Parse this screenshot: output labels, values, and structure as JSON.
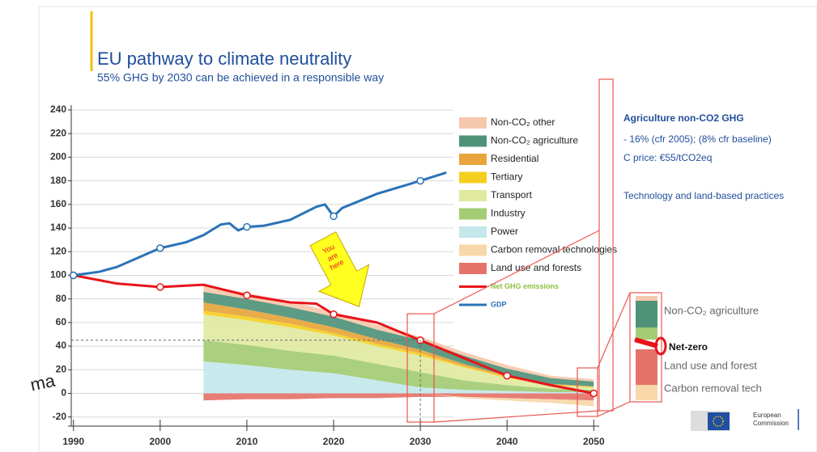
{
  "chart_data": {
    "type": "stacked_area",
    "title": "EU pathway to climate neutrality",
    "subtitle": "55% GHG by 2030 can be achieved in a responsible way",
    "xlim": [
      1989,
      2051
    ],
    "xticks": [
      1990,
      2000,
      2010,
      2020,
      2030,
      2040,
      2050
    ],
    "ylim": [
      -25,
      240
    ],
    "yticks": [
      -20,
      0,
      20,
      40,
      60,
      80,
      100,
      120,
      140,
      160,
      180,
      200,
      220,
      240
    ],
    "grid": true,
    "series": [
      {
        "name": "Non-CO₂ other",
        "type": "area",
        "color": "#f6c8ad",
        "x": [
          2005,
          2010,
          2015,
          2020,
          2025,
          2030,
          2035,
          2040,
          2045,
          2050
        ],
        "values": [
          6,
          5,
          5,
          4,
          4,
          3,
          3,
          3,
          2,
          2
        ]
      },
      {
        "name": "Non-CO₂ agriculture",
        "type": "area",
        "color": "#4f9279",
        "x": [
          2005,
          2010,
          2015,
          2020,
          2025,
          2030,
          2035,
          2040,
          2045,
          2050
        ],
        "values": [
          9,
          9,
          9,
          9,
          8,
          8,
          7,
          6,
          5,
          4
        ]
      },
      {
        "name": "Residential",
        "type": "area",
        "color": "#e7a53b",
        "x": [
          2005,
          2010,
          2015,
          2020,
          2025,
          2030,
          2035,
          2040,
          2045,
          2050
        ],
        "values": [
          7,
          6,
          5,
          5,
          4,
          3,
          2,
          1,
          0.5,
          0.5
        ]
      },
      {
        "name": "Tertiary",
        "type": "area",
        "color": "#f5cf20",
        "x": [
          2005,
          2010,
          2015,
          2020,
          2025,
          2030,
          2035,
          2040,
          2045,
          2050
        ],
        "values": [
          3,
          3,
          3,
          2,
          2,
          2,
          1,
          1,
          0.5,
          0.5
        ]
      },
      {
        "name": "Transport",
        "type": "area",
        "color": "#dfe9a0",
        "x": [
          2005,
          2010,
          2015,
          2020,
          2025,
          2030,
          2035,
          2040,
          2045,
          2050
        ],
        "values": [
          22,
          21,
          20,
          17,
          15,
          14,
          11,
          6,
          3,
          2
        ]
      },
      {
        "name": "Industry",
        "type": "area",
        "color": "#a3cc74",
        "x": [
          2005,
          2010,
          2015,
          2020,
          2025,
          2030,
          2035,
          2040,
          2045,
          2050
        ],
        "values": [
          18,
          17,
          16,
          15,
          14,
          13,
          8,
          5,
          3,
          2
        ]
      },
      {
        "name": "Power",
        "type": "area",
        "color": "#c4e8ec",
        "x": [
          2005,
          2010,
          2015,
          2020,
          2025,
          2030,
          2035,
          2040,
          2045,
          2050
        ],
        "values": [
          27,
          24,
          20,
          17,
          11,
          5,
          3,
          2,
          1,
          1
        ]
      },
      {
        "name": "Carbon removal technologies",
        "type": "area",
        "color": "#f8d7a8",
        "x": [
          2005,
          2010,
          2015,
          2020,
          2025,
          2030,
          2035,
          2040,
          2045,
          2050
        ],
        "values": [
          0,
          0,
          0,
          0,
          0,
          0,
          -1,
          -2,
          -3,
          -5
        ]
      },
      {
        "name": "Land use and forests",
        "type": "area",
        "color": "#e5736a",
        "x": [
          2005,
          2010,
          2015,
          2020,
          2025,
          2030,
          2035,
          2040,
          2045,
          2050
        ],
        "values": [
          -6,
          -5,
          -5,
          -4,
          -4,
          -3,
          -3,
          -4,
          -5,
          -6
        ]
      },
      {
        "name": "Net GHG emissions",
        "type": "line",
        "color": "#e8141a",
        "label_color": "#8cbf3f",
        "x": [
          1990,
          1995,
          2000,
          2005,
          2010,
          2015,
          2018,
          2020,
          2025,
          2030,
          2035,
          2040,
          2045,
          2050
        ],
        "values": [
          100,
          93,
          90,
          92,
          83,
          77,
          76,
          67,
          60,
          45,
          30,
          15,
          7,
          0
        ]
      },
      {
        "name": "GDP",
        "type": "line",
        "color": "#2b73b8",
        "label_color": "#2b73b8",
        "x": [
          1990,
          1993,
          1995,
          2000,
          2003,
          2005,
          2007,
          2008,
          2009,
          2010,
          2012,
          2015,
          2018,
          2019,
          2020,
          2021,
          2025,
          2030,
          2033
        ],
        "values": [
          100,
          103,
          107,
          123,
          128,
          134,
          143,
          144,
          138,
          141,
          142,
          147,
          158,
          160,
          150,
          157,
          169,
          180,
          187
        ]
      }
    ],
    "arrow_label": [
      "You",
      "are",
      "here"
    ]
  },
  "notes": {
    "heading": "Agriculture non-CO2 GHG",
    "lines": [
      "- 16% (cfr 2005); (8% cfr baseline)",
      "C price: €55/tCO2eq"
    ],
    "footer": "Technology and land-based practices"
  },
  "inset": {
    "labels": [
      "Non-CO₂ agriculture",
      "Net-zero",
      "Land use and forest",
      "Carbon removal tech"
    ]
  },
  "logo": [
    "European",
    "Commission"
  ],
  "overlay_text": "ma"
}
